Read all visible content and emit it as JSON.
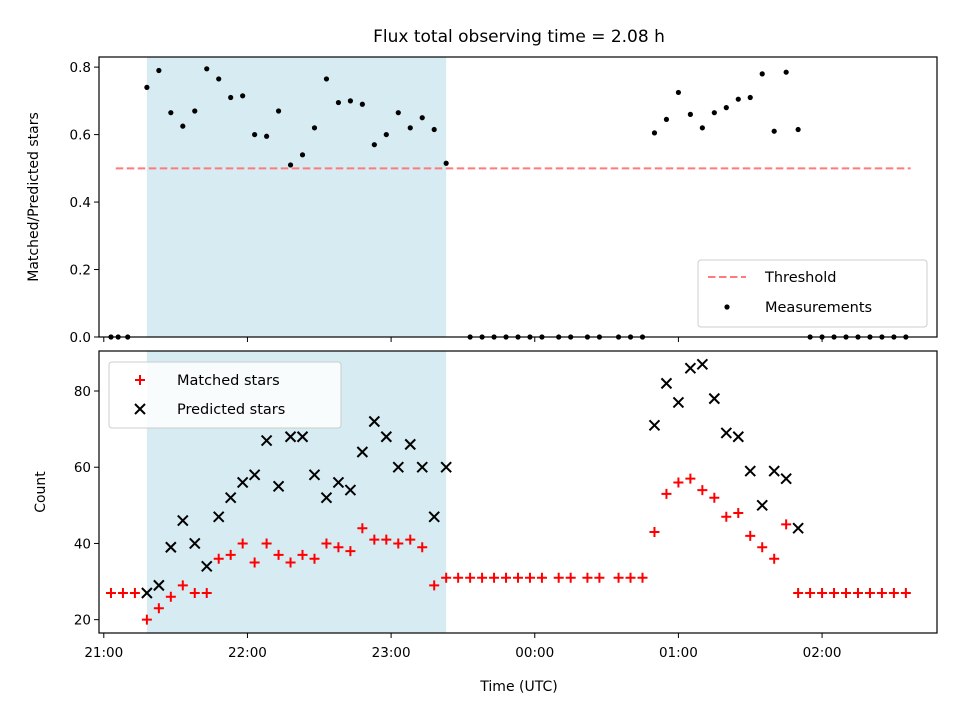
{
  "title": "Flux total observing time = 2.08 h",
  "xlabel": "Time (UTC)",
  "x_ticks": [
    {
      "value": "21:00",
      "label": "21:00"
    },
    {
      "value": "22:00",
      "label": "22:00"
    },
    {
      "value": "23:00",
      "label": "23:00"
    },
    {
      "value": "00:00",
      "label": "00:00"
    },
    {
      "value": "01:00",
      "label": "01:00"
    },
    {
      "value": "02:00",
      "label": "02:00"
    }
  ],
  "chart_data": [
    {
      "type": "scatter",
      "ylabel": "Matched/Predicted stars",
      "ylim": [
        0,
        0.83
      ],
      "xlim": [
        "20:58",
        "02:48"
      ],
      "y_ticks": [
        0.0,
        0.2,
        0.4,
        0.6,
        0.8
      ],
      "y_tick_labels": [
        "0.0",
        "0.2",
        "0.4",
        "0.6",
        "0.8"
      ],
      "shaded_span": {
        "x_start": "21:18",
        "x_end": "23:23",
        "color": "#add8e6"
      },
      "threshold": {
        "name": "Threshold",
        "y": 0.5,
        "x_start": "21:05",
        "x_end": "02:37",
        "color": "#ff7b7b",
        "style": "dashed"
      },
      "legend_position": "lower right",
      "series": [
        {
          "name": "Measurements",
          "color": "#000000",
          "marker": "dot",
          "points": [
            [
              "21:03",
              0.0
            ],
            [
              "21:06",
              0.0
            ],
            [
              "21:10",
              0.0
            ],
            [
              "21:18",
              0.74
            ],
            [
              "21:23",
              0.79
            ],
            [
              "21:28",
              0.665
            ],
            [
              "21:33",
              0.625
            ],
            [
              "21:38",
              0.67
            ],
            [
              "21:43",
              0.795
            ],
            [
              "21:48",
              0.765
            ],
            [
              "21:53",
              0.71
            ],
            [
              "21:58",
              0.715
            ],
            [
              "22:03",
              0.6
            ],
            [
              "22:08",
              0.595
            ],
            [
              "22:13",
              0.67
            ],
            [
              "22:18",
              0.51
            ],
            [
              "22:23",
              0.54
            ],
            [
              "22:28",
              0.62
            ],
            [
              "22:33",
              0.765
            ],
            [
              "22:38",
              0.695
            ],
            [
              "22:43",
              0.7
            ],
            [
              "22:48",
              0.69
            ],
            [
              "22:53",
              0.57
            ],
            [
              "22:58",
              0.6
            ],
            [
              "23:03",
              0.665
            ],
            [
              "23:08",
              0.62
            ],
            [
              "23:13",
              0.65
            ],
            [
              "23:18",
              0.615
            ],
            [
              "23:23",
              0.515
            ],
            [
              "23:33",
              0.0
            ],
            [
              "23:38",
              0.0
            ],
            [
              "23:43",
              0.0
            ],
            [
              "23:48",
              0.0
            ],
            [
              "23:53",
              0.0
            ],
            [
              "23:58",
              0.0
            ],
            [
              "00:03",
              0.0
            ],
            [
              "00:10",
              0.0
            ],
            [
              "00:15",
              0.0
            ],
            [
              "00:22",
              0.0
            ],
            [
              "00:27",
              0.0
            ],
            [
              "00:35",
              0.0
            ],
            [
              "00:40",
              0.0
            ],
            [
              "00:45",
              0.0
            ],
            [
              "00:50",
              0.605
            ],
            [
              "00:55",
              0.645
            ],
            [
              "01:00",
              0.725
            ],
            [
              "01:05",
              0.66
            ],
            [
              "01:10",
              0.62
            ],
            [
              "01:15",
              0.665
            ],
            [
              "01:20",
              0.68
            ],
            [
              "01:25",
              0.705
            ],
            [
              "01:30",
              0.71
            ],
            [
              "01:35",
              0.78
            ],
            [
              "01:40",
              0.61
            ],
            [
              "01:45",
              0.785
            ],
            [
              "01:50",
              0.615
            ],
            [
              "01:55",
              0.0
            ],
            [
              "02:00",
              0.0
            ],
            [
              "02:05",
              0.0
            ],
            [
              "02:10",
              0.0
            ],
            [
              "02:15",
              0.0
            ],
            [
              "02:20",
              0.0
            ],
            [
              "02:25",
              0.0
            ],
            [
              "02:30",
              0.0
            ],
            [
              "02:35",
              0.0
            ]
          ]
        }
      ]
    },
    {
      "type": "scatter",
      "ylabel": "Count",
      "ylim": [
        16.5,
        90.5
      ],
      "xlim": [
        "20:58",
        "02:48"
      ],
      "y_ticks": [
        20,
        40,
        60,
        80
      ],
      "y_tick_labels": [
        "20",
        "40",
        "60",
        "80"
      ],
      "shaded_span": {
        "x_start": "21:18",
        "x_end": "23:23",
        "color": "#add8e6"
      },
      "legend_position": "upper left",
      "series": [
        {
          "name": "Matched stars",
          "color": "#ff0000",
          "marker": "plus",
          "points": [
            [
              "21:03",
              27
            ],
            [
              "21:08",
              27
            ],
            [
              "21:13",
              27
            ],
            [
              "21:18",
              20
            ],
            [
              "21:23",
              23
            ],
            [
              "21:28",
              26
            ],
            [
              "21:33",
              29
            ],
            [
              "21:38",
              27
            ],
            [
              "21:43",
              27
            ],
            [
              "21:48",
              36
            ],
            [
              "21:53",
              37
            ],
            [
              "21:58",
              40
            ],
            [
              "22:03",
              35
            ],
            [
              "22:08",
              40
            ],
            [
              "22:13",
              37
            ],
            [
              "22:18",
              35
            ],
            [
              "22:23",
              37
            ],
            [
              "22:28",
              36
            ],
            [
              "22:33",
              40
            ],
            [
              "22:38",
              39
            ],
            [
              "22:43",
              38
            ],
            [
              "22:48",
              44
            ],
            [
              "22:53",
              41
            ],
            [
              "22:58",
              41
            ],
            [
              "23:03",
              40
            ],
            [
              "23:08",
              41
            ],
            [
              "23:13",
              39
            ],
            [
              "23:18",
              29
            ],
            [
              "23:23",
              31
            ],
            [
              "23:28",
              31
            ],
            [
              "23:33",
              31
            ],
            [
              "23:38",
              31
            ],
            [
              "23:43",
              31
            ],
            [
              "23:48",
              31
            ],
            [
              "23:53",
              31
            ],
            [
              "23:58",
              31
            ],
            [
              "00:03",
              31
            ],
            [
              "00:10",
              31
            ],
            [
              "00:15",
              31
            ],
            [
              "00:22",
              31
            ],
            [
              "00:27",
              31
            ],
            [
              "00:35",
              31
            ],
            [
              "00:40",
              31
            ],
            [
              "00:45",
              31
            ],
            [
              "00:50",
              43
            ],
            [
              "00:55",
              53
            ],
            [
              "01:00",
              56
            ],
            [
              "01:05",
              57
            ],
            [
              "01:10",
              54
            ],
            [
              "01:15",
              52
            ],
            [
              "01:20",
              47
            ],
            [
              "01:25",
              48
            ],
            [
              "01:30",
              42
            ],
            [
              "01:35",
              39
            ],
            [
              "01:40",
              36
            ],
            [
              "01:45",
              45
            ],
            [
              "01:50",
              27
            ],
            [
              "01:55",
              27
            ],
            [
              "02:00",
              27
            ],
            [
              "02:05",
              27
            ],
            [
              "02:10",
              27
            ],
            [
              "02:15",
              27
            ],
            [
              "02:20",
              27
            ],
            [
              "02:25",
              27
            ],
            [
              "02:30",
              27
            ],
            [
              "02:35",
              27
            ]
          ]
        },
        {
          "name": "Predicted stars",
          "color": "#000000",
          "marker": "x",
          "points": [
            [
              "21:18",
              27
            ],
            [
              "21:23",
              29
            ],
            [
              "21:28",
              39
            ],
            [
              "21:33",
              46
            ],
            [
              "21:38",
              40
            ],
            [
              "21:43",
              34
            ],
            [
              "21:48",
              47
            ],
            [
              "21:53",
              52
            ],
            [
              "21:58",
              56
            ],
            [
              "22:03",
              58
            ],
            [
              "22:08",
              67
            ],
            [
              "22:13",
              55
            ],
            [
              "22:18",
              68
            ],
            [
              "22:23",
              68
            ],
            [
              "22:28",
              58
            ],
            [
              "22:33",
              52
            ],
            [
              "22:38",
              56
            ],
            [
              "22:43",
              54
            ],
            [
              "22:48",
              64
            ],
            [
              "22:53",
              72
            ],
            [
              "22:58",
              68
            ],
            [
              "23:03",
              60
            ],
            [
              "23:08",
              66
            ],
            [
              "23:13",
              60
            ],
            [
              "23:18",
              47
            ],
            [
              "23:23",
              60
            ],
            [
              "00:50",
              71
            ],
            [
              "00:55",
              82
            ],
            [
              "01:00",
              77
            ],
            [
              "01:05",
              86
            ],
            [
              "01:10",
              87
            ],
            [
              "01:15",
              78
            ],
            [
              "01:20",
              69
            ],
            [
              "01:25",
              68
            ],
            [
              "01:30",
              59
            ],
            [
              "01:35",
              50
            ],
            [
              "01:40",
              59
            ],
            [
              "01:45",
              57
            ],
            [
              "01:50",
              44
            ]
          ]
        }
      ]
    }
  ]
}
